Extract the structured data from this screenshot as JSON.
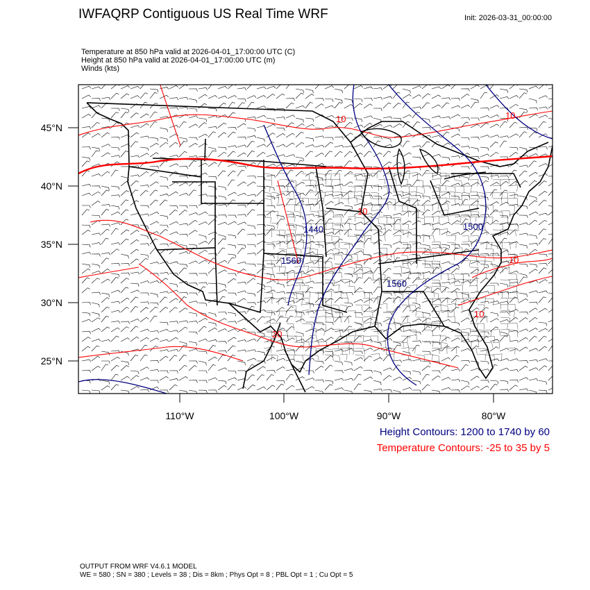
{
  "header": {
    "title": "IWFAQRP Contiguous US Real Time WRF",
    "init": "Init: 2026-03-31_00:00:00"
  },
  "fields": [
    "Temperature at 850 hPa valid at 2026-04-01_17:00:00 UTC   (C)",
    "Height at 850 hPa valid at 2026-04-01_17:00:00 UTC   (m)",
    "Winds   (kts)"
  ],
  "axes": {
    "lat_labels": [
      "45°N",
      "40°N",
      "35°N",
      "30°N",
      "25°N"
    ],
    "lon_labels": [
      "110°W",
      "100°W",
      "90°W",
      "80°W"
    ]
  },
  "contour_labels": {
    "height": [
      "1440",
      "1500",
      "1560",
      "1560"
    ],
    "temperature": [
      "10",
      "10",
      "10",
      "10",
      "20",
      "10"
    ]
  },
  "legend": {
    "height": "Height Contours: 1200 to 1740 by 60",
    "temperature": "Temperature Contours: -25 to 35 by 5"
  },
  "footer": {
    "line1": "OUTPUT FROM WRF V4.6.1 MODEL",
    "line2": "WE = 580 ; SN = 380 ; Levels = 38 ; Dis = 8km ; Phys Opt = 8 ; PBL Opt = 1 ; Cu Opt = 5"
  },
  "colors": {
    "height": "#000080",
    "temperature": "#ff0000",
    "frame": "#000000"
  }
}
